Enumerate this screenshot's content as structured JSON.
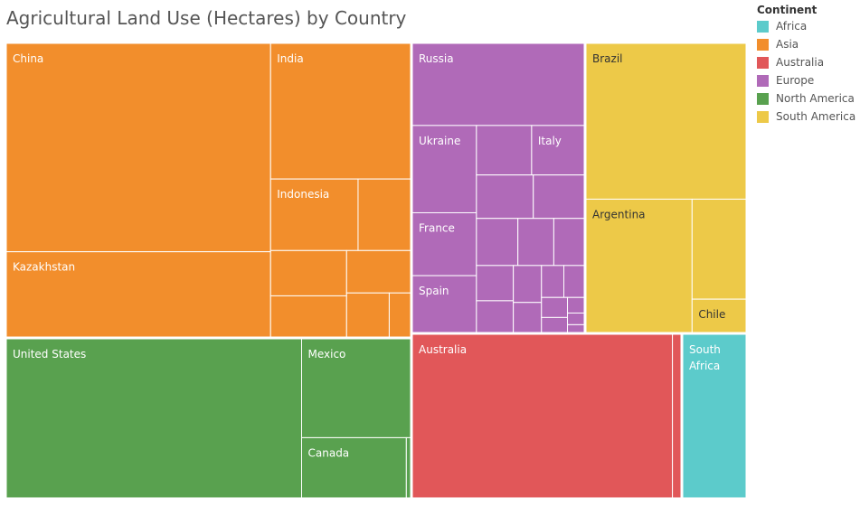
{
  "title": "Agricultural Land Use (Hectares) by Country",
  "legend": {
    "title": "Continent",
    "items": [
      {
        "label": "Africa",
        "color": "#5ccbcb"
      },
      {
        "label": "Asia",
        "color": "#f28e2c"
      },
      {
        "label": "Australia",
        "color": "#e15759"
      },
      {
        "label": "Europe",
        "color": "#b06ab8"
      },
      {
        "label": "North America",
        "color": "#59a14f"
      },
      {
        "label": "South America",
        "color": "#edc948"
      }
    ]
  },
  "chart_data": {
    "type": "treemap",
    "title": "Agricultural Land Use (Hectares) by Country",
    "legend_title": "Continent",
    "legend_position": "top-right",
    "groups": [
      {
        "continent": "Asia",
        "color": "#f28e2c",
        "countries": [
          {
            "name": "China",
            "value": 5280
          },
          {
            "name": "Kazakhstan",
            "value": 2160
          },
          {
            "name": "India",
            "value": 1820
          },
          {
            "name": "Indonesia",
            "value": 600
          },
          {
            "name": "",
            "value": 360
          },
          {
            "name": "",
            "value": 330
          },
          {
            "name": "",
            "value": 300
          },
          {
            "name": "",
            "value": 260
          },
          {
            "name": "",
            "value": 180
          },
          {
            "name": "",
            "value": 90
          }
        ]
      },
      {
        "continent": "Europe",
        "color": "#b06ab8",
        "countries": [
          {
            "name": "Russia",
            "value": 2170
          },
          {
            "name": "Ukraine",
            "value": 860
          },
          {
            "name": "France",
            "value": 620
          },
          {
            "name": "Spain",
            "value": 560
          },
          {
            "name": "Italy",
            "value": 400
          },
          {
            "name": "",
            "value": 420
          },
          {
            "name": "",
            "value": 380
          },
          {
            "name": "",
            "value": 340
          },
          {
            "name": "",
            "value": 300
          },
          {
            "name": "",
            "value": 260
          },
          {
            "name": "",
            "value": 220
          },
          {
            "name": "",
            "value": 200
          },
          {
            "name": "",
            "value": 180
          },
          {
            "name": "",
            "value": 160
          },
          {
            "name": "",
            "value": 130
          },
          {
            "name": "",
            "value": 110
          },
          {
            "name": "",
            "value": 100
          },
          {
            "name": "",
            "value": 80
          },
          {
            "name": "",
            "value": 60
          },
          {
            "name": "",
            "value": 40
          },
          {
            "name": "",
            "value": 30
          },
          {
            "name": "",
            "value": 20
          }
        ]
      },
      {
        "continent": "South America",
        "color": "#edc948",
        "countries": [
          {
            "name": "Brazil",
            "value": 3050
          },
          {
            "name": "Argentina",
            "value": 1730
          },
          {
            "name": "",
            "value": 660
          },
          {
            "name": "Chile",
            "value": 220
          }
        ]
      },
      {
        "continent": "North America",
        "color": "#59a14f",
        "countries": [
          {
            "name": "United States",
            "value": 4620
          },
          {
            "name": "Mexico",
            "value": 1060
          },
          {
            "name": "Canada",
            "value": 620
          },
          {
            "name": "",
            "value": 25
          }
        ]
      },
      {
        "continent": "Australia",
        "color": "#e15759",
        "countries": [
          {
            "name": "Australia",
            "value": 3980
          },
          {
            "name": "",
            "value": 130
          }
        ]
      },
      {
        "continent": "Africa",
        "color": "#5ccbcb",
        "countries": [
          {
            "name": "South Africa",
            "value": 1040
          }
        ]
      }
    ]
  }
}
